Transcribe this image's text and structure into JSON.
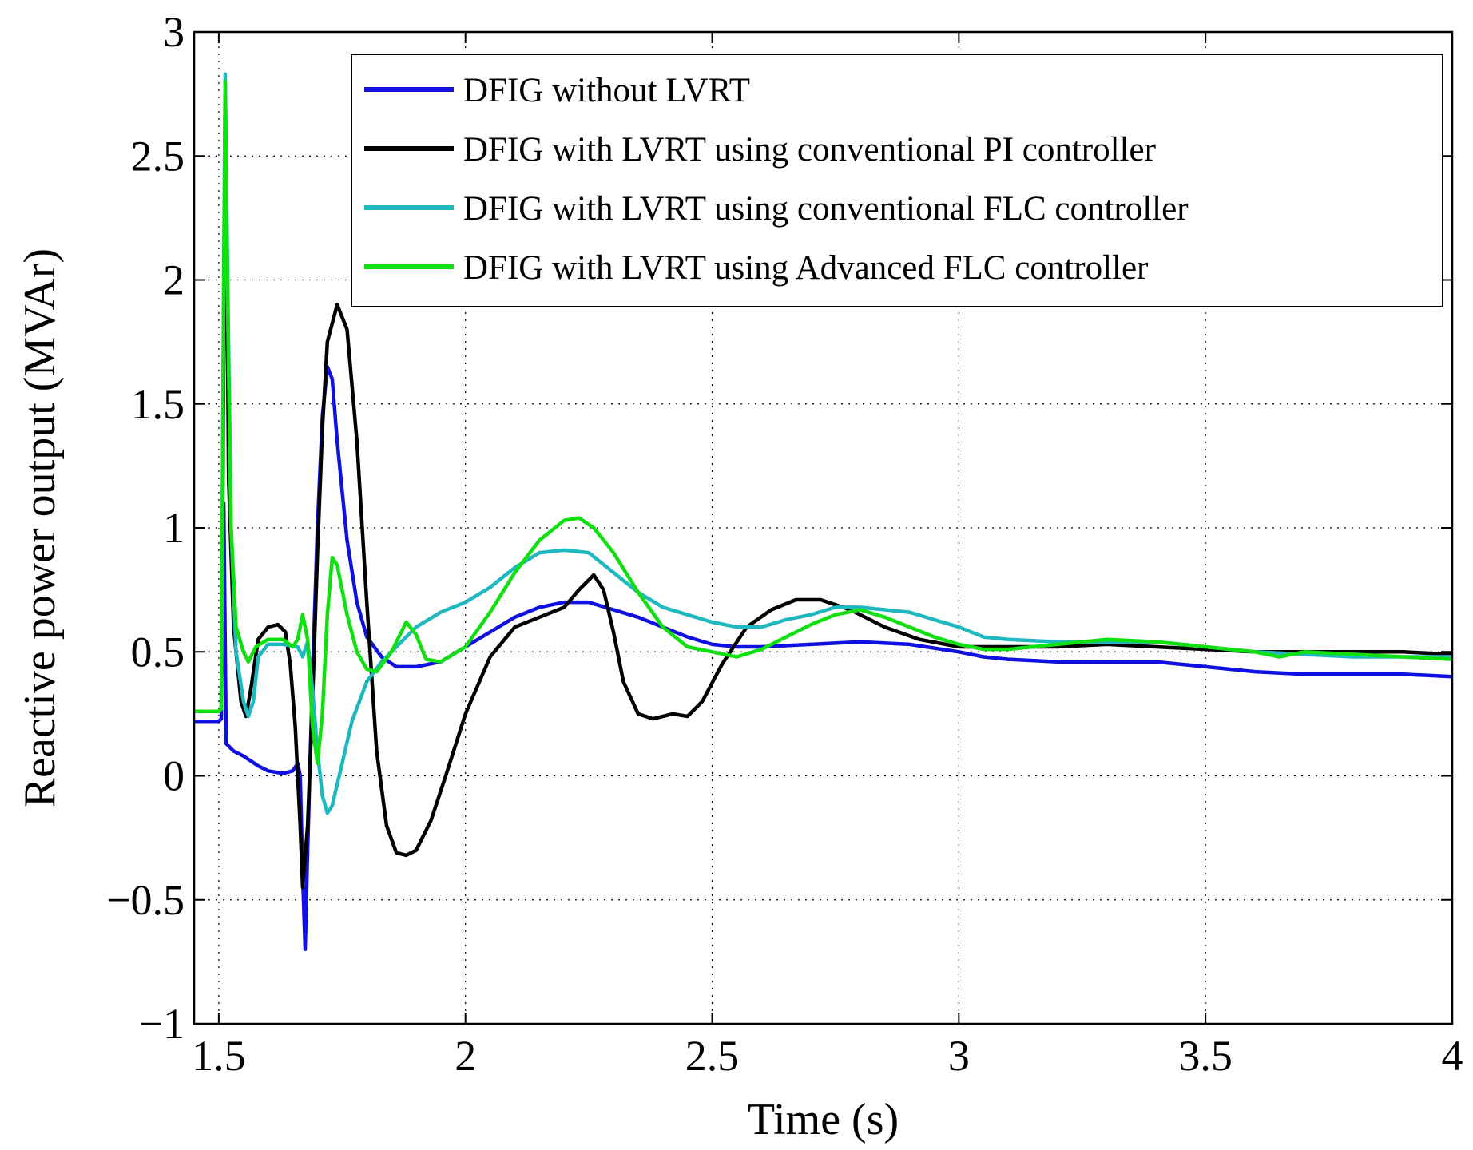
{
  "chart_data": {
    "type": "line",
    "title": "",
    "xlabel": "Time (s)",
    "ylabel": "Reactive power output (MVAr)",
    "xlim": [
      1.45,
      4
    ],
    "ylim": [
      -1,
      3
    ],
    "grid": true,
    "legend_position": "top-right",
    "x_ticks": [
      {
        "value": 1.5,
        "label": "1.5"
      },
      {
        "value": 2,
        "label": "2"
      },
      {
        "value": 2.5,
        "label": "2.5"
      },
      {
        "value": 3,
        "label": "3"
      },
      {
        "value": 3.5,
        "label": "3.5"
      },
      {
        "value": 4,
        "label": "4"
      }
    ],
    "y_ticks": [
      {
        "value": -1,
        "label": "−1"
      },
      {
        "value": -0.5,
        "label": "−0.5"
      },
      {
        "value": 0,
        "label": "0"
      },
      {
        "value": 0.5,
        "label": "0.5"
      },
      {
        "value": 1,
        "label": "1"
      },
      {
        "value": 1.5,
        "label": "1.5"
      },
      {
        "value": 2,
        "label": "2"
      },
      {
        "value": 2.5,
        "label": "2.5"
      },
      {
        "value": 3,
        "label": "3"
      }
    ],
    "series": [
      {
        "name": "DFIG without LVRT",
        "color": "#1010e0",
        "points": [
          [
            1.45,
            0.22
          ],
          [
            1.5,
            0.22
          ],
          [
            1.505,
            0.23
          ],
          [
            1.51,
            1.1
          ],
          [
            1.515,
            0.13
          ],
          [
            1.53,
            0.1
          ],
          [
            1.55,
            0.08
          ],
          [
            1.58,
            0.04
          ],
          [
            1.6,
            0.02
          ],
          [
            1.63,
            0.01
          ],
          [
            1.65,
            0.02
          ],
          [
            1.66,
            0.05
          ],
          [
            1.665,
            0.0
          ],
          [
            1.67,
            -0.4
          ],
          [
            1.675,
            -0.7
          ],
          [
            1.68,
            -0.3
          ],
          [
            1.69,
            0.4
          ],
          [
            1.7,
            1.0
          ],
          [
            1.71,
            1.45
          ],
          [
            1.72,
            1.65
          ],
          [
            1.73,
            1.6
          ],
          [
            1.74,
            1.35
          ],
          [
            1.76,
            0.95
          ],
          [
            1.78,
            0.7
          ],
          [
            1.8,
            0.56
          ],
          [
            1.83,
            0.48
          ],
          [
            1.86,
            0.44
          ],
          [
            1.9,
            0.44
          ],
          [
            1.95,
            0.46
          ],
          [
            2.0,
            0.52
          ],
          [
            2.05,
            0.58
          ],
          [
            2.1,
            0.64
          ],
          [
            2.15,
            0.68
          ],
          [
            2.2,
            0.7
          ],
          [
            2.25,
            0.7
          ],
          [
            2.3,
            0.67
          ],
          [
            2.35,
            0.64
          ],
          [
            2.4,
            0.6
          ],
          [
            2.45,
            0.56
          ],
          [
            2.5,
            0.53
          ],
          [
            2.55,
            0.52
          ],
          [
            2.6,
            0.52
          ],
          [
            2.7,
            0.53
          ],
          [
            2.8,
            0.54
          ],
          [
            2.9,
            0.53
          ],
          [
            3.0,
            0.5
          ],
          [
            3.05,
            0.48
          ],
          [
            3.1,
            0.47
          ],
          [
            3.2,
            0.46
          ],
          [
            3.3,
            0.46
          ],
          [
            3.4,
            0.46
          ],
          [
            3.5,
            0.44
          ],
          [
            3.6,
            0.42
          ],
          [
            3.7,
            0.41
          ],
          [
            3.8,
            0.41
          ],
          [
            3.9,
            0.41
          ],
          [
            4.0,
            0.4
          ]
        ]
      },
      {
        "name": "DFIG with LVRT using conventional PI controller",
        "color": "#000000",
        "points": [
          [
            1.45,
            0.26
          ],
          [
            1.5,
            0.26
          ],
          [
            1.505,
            0.27
          ],
          [
            1.51,
            1.7
          ],
          [
            1.515,
            2.5
          ],
          [
            1.52,
            1.2
          ],
          [
            1.53,
            0.6
          ],
          [
            1.545,
            0.3
          ],
          [
            1.555,
            0.24
          ],
          [
            1.565,
            0.35
          ],
          [
            1.58,
            0.55
          ],
          [
            1.6,
            0.6
          ],
          [
            1.62,
            0.61
          ],
          [
            1.635,
            0.58
          ],
          [
            1.645,
            0.45
          ],
          [
            1.655,
            0.2
          ],
          [
            1.665,
            -0.2
          ],
          [
            1.67,
            -0.45
          ],
          [
            1.68,
            -0.2
          ],
          [
            1.69,
            0.3
          ],
          [
            1.7,
            0.9
          ],
          [
            1.71,
            1.4
          ],
          [
            1.72,
            1.75
          ],
          [
            1.74,
            1.9
          ],
          [
            1.76,
            1.8
          ],
          [
            1.78,
            1.35
          ],
          [
            1.8,
            0.7
          ],
          [
            1.82,
            0.1
          ],
          [
            1.84,
            -0.2
          ],
          [
            1.86,
            -0.31
          ],
          [
            1.88,
            -0.32
          ],
          [
            1.9,
            -0.3
          ],
          [
            1.93,
            -0.18
          ],
          [
            1.96,
            0.0
          ],
          [
            2.0,
            0.25
          ],
          [
            2.05,
            0.48
          ],
          [
            2.1,
            0.6
          ],
          [
            2.15,
            0.64
          ],
          [
            2.2,
            0.68
          ],
          [
            2.23,
            0.75
          ],
          [
            2.26,
            0.81
          ],
          [
            2.28,
            0.75
          ],
          [
            2.3,
            0.58
          ],
          [
            2.32,
            0.38
          ],
          [
            2.35,
            0.25
          ],
          [
            2.38,
            0.23
          ],
          [
            2.42,
            0.25
          ],
          [
            2.45,
            0.24
          ],
          [
            2.48,
            0.3
          ],
          [
            2.52,
            0.45
          ],
          [
            2.57,
            0.6
          ],
          [
            2.62,
            0.67
          ],
          [
            2.67,
            0.71
          ],
          [
            2.72,
            0.71
          ],
          [
            2.78,
            0.67
          ],
          [
            2.85,
            0.6
          ],
          [
            2.92,
            0.55
          ],
          [
            3.0,
            0.52
          ],
          [
            3.1,
            0.52
          ],
          [
            3.2,
            0.52
          ],
          [
            3.3,
            0.53
          ],
          [
            3.4,
            0.52
          ],
          [
            3.5,
            0.51
          ],
          [
            3.6,
            0.5
          ],
          [
            3.7,
            0.5
          ],
          [
            3.8,
            0.5
          ],
          [
            3.9,
            0.5
          ],
          [
            4.0,
            0.49
          ]
        ]
      },
      {
        "name": "DFIG with LVRT using conventional FLC controller",
        "color": "#20b8c0",
        "points": [
          [
            1.45,
            0.26
          ],
          [
            1.5,
            0.26
          ],
          [
            1.505,
            0.27
          ],
          [
            1.51,
            2.0
          ],
          [
            1.513,
            2.83
          ],
          [
            1.518,
            2.0
          ],
          [
            1.525,
            1.0
          ],
          [
            1.535,
            0.5
          ],
          [
            1.55,
            0.3
          ],
          [
            1.56,
            0.24
          ],
          [
            1.57,
            0.3
          ],
          [
            1.58,
            0.48
          ],
          [
            1.6,
            0.53
          ],
          [
            1.63,
            0.53
          ],
          [
            1.66,
            0.52
          ],
          [
            1.67,
            0.48
          ],
          [
            1.68,
            0.54
          ],
          [
            1.69,
            0.35
          ],
          [
            1.7,
            0.1
          ],
          [
            1.71,
            -0.08
          ],
          [
            1.72,
            -0.15
          ],
          [
            1.73,
            -0.12
          ],
          [
            1.75,
            0.05
          ],
          [
            1.77,
            0.22
          ],
          [
            1.8,
            0.38
          ],
          [
            1.83,
            0.46
          ],
          [
            1.86,
            0.52
          ],
          [
            1.9,
            0.6
          ],
          [
            1.95,
            0.66
          ],
          [
            2.0,
            0.7
          ],
          [
            2.05,
            0.76
          ],
          [
            2.1,
            0.84
          ],
          [
            2.15,
            0.9
          ],
          [
            2.2,
            0.91
          ],
          [
            2.25,
            0.9
          ],
          [
            2.3,
            0.82
          ],
          [
            2.35,
            0.74
          ],
          [
            2.4,
            0.68
          ],
          [
            2.45,
            0.65
          ],
          [
            2.5,
            0.62
          ],
          [
            2.55,
            0.6
          ],
          [
            2.6,
            0.6
          ],
          [
            2.65,
            0.63
          ],
          [
            2.7,
            0.65
          ],
          [
            2.75,
            0.68
          ],
          [
            2.8,
            0.68
          ],
          [
            2.9,
            0.66
          ],
          [
            3.0,
            0.6
          ],
          [
            3.05,
            0.56
          ],
          [
            3.1,
            0.55
          ],
          [
            3.2,
            0.54
          ],
          [
            3.3,
            0.54
          ],
          [
            3.4,
            0.54
          ],
          [
            3.5,
            0.52
          ],
          [
            3.6,
            0.5
          ],
          [
            3.7,
            0.49
          ],
          [
            3.8,
            0.48
          ],
          [
            3.9,
            0.48
          ],
          [
            4.0,
            0.48
          ]
        ]
      },
      {
        "name": "DFIG with LVRT using Advanced FLC controller",
        "color": "#10e010",
        "points": [
          [
            1.45,
            0.26
          ],
          [
            1.5,
            0.26
          ],
          [
            1.505,
            0.27
          ],
          [
            1.51,
            2.0
          ],
          [
            1.513,
            2.8
          ],
          [
            1.518,
            1.9
          ],
          [
            1.525,
            1.0
          ],
          [
            1.535,
            0.6
          ],
          [
            1.55,
            0.5
          ],
          [
            1.56,
            0.46
          ],
          [
            1.575,
            0.52
          ],
          [
            1.6,
            0.55
          ],
          [
            1.63,
            0.55
          ],
          [
            1.65,
            0.52
          ],
          [
            1.66,
            0.55
          ],
          [
            1.67,
            0.65
          ],
          [
            1.68,
            0.55
          ],
          [
            1.69,
            0.2
          ],
          [
            1.7,
            0.05
          ],
          [
            1.71,
            0.25
          ],
          [
            1.72,
            0.65
          ],
          [
            1.73,
            0.88
          ],
          [
            1.74,
            0.85
          ],
          [
            1.76,
            0.65
          ],
          [
            1.78,
            0.5
          ],
          [
            1.8,
            0.43
          ],
          [
            1.82,
            0.42
          ],
          [
            1.85,
            0.5
          ],
          [
            1.88,
            0.62
          ],
          [
            1.9,
            0.57
          ],
          [
            1.92,
            0.47
          ],
          [
            1.95,
            0.46
          ],
          [
            2.0,
            0.52
          ],
          [
            2.05,
            0.66
          ],
          [
            2.1,
            0.82
          ],
          [
            2.15,
            0.95
          ],
          [
            2.2,
            1.03
          ],
          [
            2.23,
            1.04
          ],
          [
            2.26,
            1.0
          ],
          [
            2.3,
            0.9
          ],
          [
            2.35,
            0.74
          ],
          [
            2.4,
            0.6
          ],
          [
            2.45,
            0.52
          ],
          [
            2.5,
            0.5
          ],
          [
            2.55,
            0.48
          ],
          [
            2.6,
            0.51
          ],
          [
            2.65,
            0.56
          ],
          [
            2.7,
            0.61
          ],
          [
            2.75,
            0.65
          ],
          [
            2.8,
            0.67
          ],
          [
            2.85,
            0.64
          ],
          [
            2.9,
            0.6
          ],
          [
            2.95,
            0.56
          ],
          [
            3.0,
            0.53
          ],
          [
            3.05,
            0.51
          ],
          [
            3.1,
            0.51
          ],
          [
            3.2,
            0.53
          ],
          [
            3.3,
            0.55
          ],
          [
            3.4,
            0.54
          ],
          [
            3.5,
            0.52
          ],
          [
            3.6,
            0.5
          ],
          [
            3.65,
            0.48
          ],
          [
            3.7,
            0.5
          ],
          [
            3.8,
            0.49
          ],
          [
            3.9,
            0.48
          ],
          [
            4.0,
            0.47
          ]
        ]
      }
    ]
  }
}
